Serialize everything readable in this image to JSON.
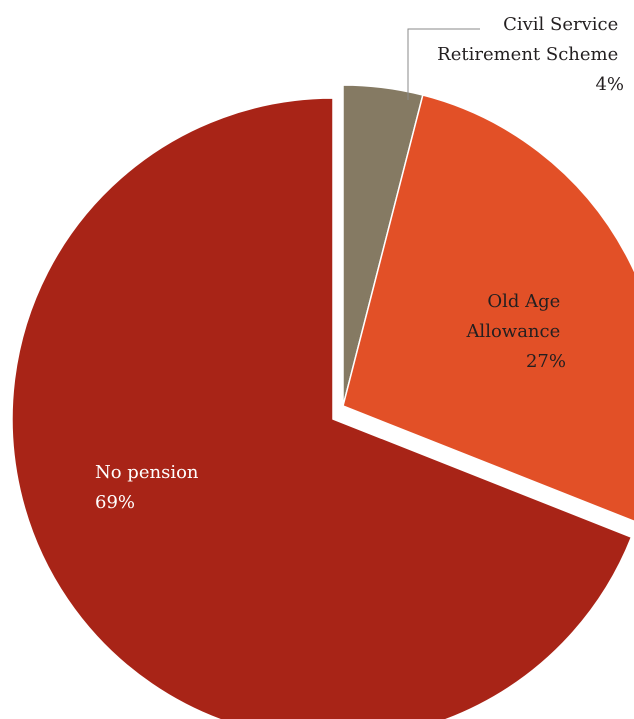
{
  "chart_data": {
    "type": "pie",
    "title": "",
    "slices": [
      {
        "label_lines": [
          "Civil Service",
          "Retirement Scheme"
        ],
        "value_label": "4%",
        "value": 4,
        "color": "#857a63"
      },
      {
        "label_lines": [
          "Old Age",
          "Allowance"
        ],
        "value_label": "27%",
        "value": 27,
        "color": "#e25027"
      },
      {
        "label_lines": [
          "No pension"
        ],
        "value_label": "69%",
        "value": 69,
        "color": "#a82417"
      }
    ],
    "exploded": [
      "Civil Service Retirement Scheme",
      "Old Age Allowance"
    ],
    "legend": "none"
  }
}
